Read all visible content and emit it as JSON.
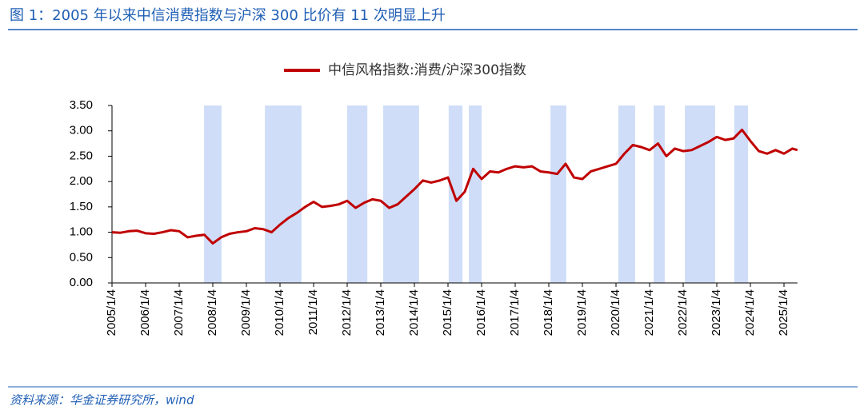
{
  "chart_data": {
    "type": "line",
    "title": "图 1：2005 年以来中信消费指数与沪深 300 比价有 11 次明显上升",
    "source": "资料来源：华金证券研究所，wind",
    "xlim": [
      2005,
      2025.4
    ],
    "ylim": [
      0,
      3.5
    ],
    "yticks": [
      {
        "value": 0,
        "label": "0.00"
      },
      {
        "value": 0.5,
        "label": "0.50"
      },
      {
        "value": 1,
        "label": "1.00"
      },
      {
        "value": 1.5,
        "label": "1.50"
      },
      {
        "value": 2,
        "label": "2.00"
      },
      {
        "value": 2.5,
        "label": "2.50"
      },
      {
        "value": 3,
        "label": "3.00"
      },
      {
        "value": 3.5,
        "label": "3.50"
      }
    ],
    "xticks": [
      {
        "value": 2005,
        "label": "2005/1/4"
      },
      {
        "value": 2006,
        "label": "2006/1/4"
      },
      {
        "value": 2007,
        "label": "2007/1/4"
      },
      {
        "value": 2008,
        "label": "2008/1/4"
      },
      {
        "value": 2009,
        "label": "2009/1/4"
      },
      {
        "value": 2010,
        "label": "2010/1/4"
      },
      {
        "value": 2011,
        "label": "2011/1/4"
      },
      {
        "value": 2012,
        "label": "2012/1/4"
      },
      {
        "value": 2013,
        "label": "2013/1/4"
      },
      {
        "value": 2014,
        "label": "2014/1/4"
      },
      {
        "value": 2015,
        "label": "2015/1/4"
      },
      {
        "value": 2016,
        "label": "2016/1/4"
      },
      {
        "value": 2017,
        "label": "2017/1/4"
      },
      {
        "value": 2018,
        "label": "2018/1/4"
      },
      {
        "value": 2019,
        "label": "2019/1/4"
      },
      {
        "value": 2020,
        "label": "2020/1/4"
      },
      {
        "value": 2021,
        "label": "2021/1/4"
      },
      {
        "value": 2022,
        "label": "2022/1/4"
      },
      {
        "value": 2023,
        "label": "2023/1/4"
      },
      {
        "value": 2024,
        "label": "2024/1/4"
      },
      {
        "value": 2025,
        "label": "2025/1/4"
      }
    ],
    "shaded_periods": [
      [
        2007.74,
        2008.26
      ],
      [
        2009.55,
        2010.64
      ],
      [
        2012.0,
        2012.6
      ],
      [
        2013.07,
        2014.14
      ],
      [
        2015.02,
        2015.43
      ],
      [
        2015.62,
        2016.0
      ],
      [
        2018.05,
        2018.52
      ],
      [
        2020.07,
        2020.57
      ],
      [
        2021.12,
        2021.45
      ],
      [
        2022.05,
        2022.95
      ],
      [
        2023.52,
        2023.93
      ]
    ],
    "shade_color": "#cfddf8",
    "x": [
      2005.0,
      2005.25,
      2005.5,
      2005.75,
      2006.0,
      2006.25,
      2006.5,
      2006.75,
      2007.0,
      2007.25,
      2007.5,
      2007.75,
      2008.0,
      2008.25,
      2008.5,
      2008.75,
      2009.0,
      2009.25,
      2009.5,
      2009.75,
      2010.0,
      2010.25,
      2010.5,
      2010.75,
      2011.0,
      2011.25,
      2011.5,
      2011.75,
      2012.0,
      2012.25,
      2012.5,
      2012.75,
      2013.0,
      2013.25,
      2013.5,
      2013.75,
      2014.0,
      2014.25,
      2014.5,
      2014.75,
      2015.0,
      2015.25,
      2015.5,
      2015.75,
      2016.0,
      2016.25,
      2016.5,
      2016.75,
      2017.0,
      2017.25,
      2017.5,
      2017.75,
      2018.0,
      2018.25,
      2018.5,
      2018.75,
      2019.0,
      2019.25,
      2019.5,
      2019.75,
      2020.0,
      2020.25,
      2020.5,
      2020.75,
      2021.0,
      2021.25,
      2021.5,
      2021.75,
      2022.0,
      2022.25,
      2022.5,
      2022.75,
      2023.0,
      2023.25,
      2023.5,
      2023.75,
      2024.0,
      2024.25,
      2024.5,
      2024.75,
      2025.0,
      2025.25,
      2025.4
    ],
    "series": [
      {
        "name": "中信风格指数:消费/沪深300指数",
        "color": "#c00000",
        "values": [
          1.0,
          0.99,
          1.02,
          1.03,
          0.98,
          0.97,
          1.0,
          1.04,
          1.02,
          0.9,
          0.93,
          0.95,
          0.78,
          0.9,
          0.97,
          1.0,
          1.02,
          1.08,
          1.06,
          1.0,
          1.15,
          1.28,
          1.38,
          1.5,
          1.6,
          1.5,
          1.52,
          1.55,
          1.62,
          1.48,
          1.58,
          1.65,
          1.62,
          1.48,
          1.55,
          1.7,
          1.85,
          2.02,
          1.98,
          2.02,
          2.08,
          1.62,
          1.8,
          2.25,
          2.05,
          2.2,
          2.18,
          2.25,
          2.3,
          2.28,
          2.3,
          2.2,
          2.18,
          2.15,
          2.35,
          2.08,
          2.05,
          2.2,
          2.25,
          2.3,
          2.35,
          2.55,
          2.72,
          2.68,
          2.62,
          2.75,
          2.5,
          2.65,
          2.6,
          2.62,
          2.7,
          2.78,
          2.88,
          2.82,
          2.85,
          3.02,
          2.8,
          2.6,
          2.55,
          2.62,
          2.55,
          2.65,
          2.62
        ]
      }
    ]
  }
}
